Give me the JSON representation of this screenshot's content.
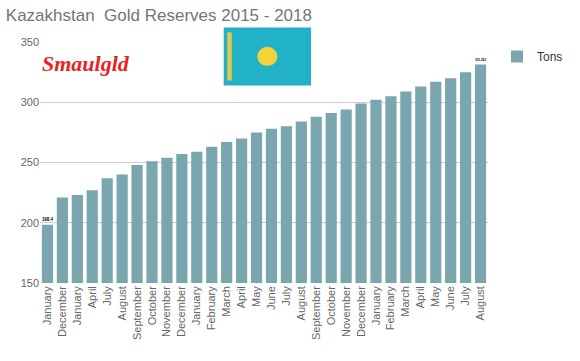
{
  "chart_data": {
    "type": "bar",
    "title": "Kazakhstan  Gold Reserves 2015 - 2018",
    "annotations": [
      {
        "text": "Smaulgld"
      }
    ],
    "categories": [
      "January",
      "December",
      "January",
      "April",
      "July",
      "August",
      "September",
      "October",
      "November",
      "December",
      "January",
      "February",
      "March",
      "April",
      "May",
      "June",
      "July",
      "August",
      "September",
      "October",
      "November",
      "December",
      "January",
      "February",
      "March",
      "April",
      "May",
      "June",
      "July",
      "August"
    ],
    "series": [
      {
        "name": "Tons",
        "color": "#7aa6b0",
        "values": [
          198.4,
          221,
          223,
          227,
          237,
          240,
          248,
          251,
          254,
          257,
          259,
          263,
          267,
          270,
          275,
          278,
          280,
          284,
          288,
          291,
          294,
          299,
          302,
          305,
          309,
          313,
          317,
          320,
          325,
          331.252
        ],
        "value_labels": [
          "198.4",
          null,
          null,
          null,
          null,
          null,
          null,
          null,
          null,
          null,
          null,
          null,
          null,
          null,
          null,
          null,
          null,
          null,
          null,
          null,
          null,
          null,
          null,
          null,
          null,
          null,
          null,
          null,
          null,
          "331.252"
        ]
      }
    ],
    "data_labels": true,
    "ylim": [
      150,
      350
    ],
    "yticks": [
      150,
      200,
      250,
      300,
      350
    ],
    "grid": true,
    "legend": "top-right"
  }
}
